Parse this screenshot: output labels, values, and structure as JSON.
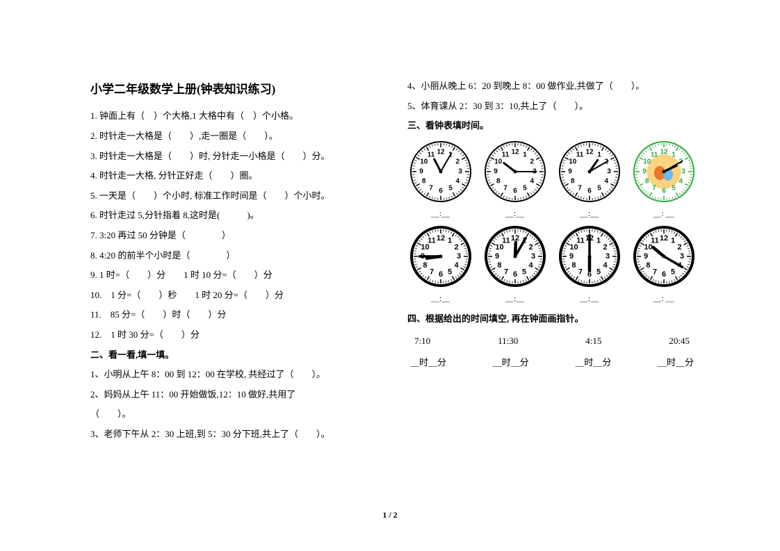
{
  "title": "小学二年级数学上册(钟表知识练习)",
  "section1": {
    "q1": "1. 钟面上有（　）个大格,1 大格中有（　）个小格。",
    "q2": "2. 时针走一大格是（　　）,走一圈是（　　）。",
    "q3": "3. 时针走一大格是（　　）时, 分针走一小格是（　　）分。",
    "q4": "4. 时针走一大格, 分针正好走（　　）圈。",
    "q5": "5. 一天是（　　）个小时,  标准工作时间是（　　）个小时。",
    "q6": "6. 时针走过 5,分针指着 8,这时是(　　　)。",
    "q7": "7. 3:20 再过 50 分钟是（　　　　）",
    "q8": "8. 4:20 的前半个小时是（　　　　）",
    "q9": "9. 1 时=（　　）分　　1 时 10 分=（　　）分",
    "q10": "10.　1 分=（　　）秒　　1 时 20 分=（　　）分",
    "q11": "11.　85 分=（　　）时（　　）分",
    "q12": "12.　1 时 30 分=（　　）分"
  },
  "section2": {
    "title": "二、看一看,填一填。",
    "q1": "1、小明从上午 8：00 到 12：00 在学校, 共经过了（　　）。",
    "q2a": "2、妈妈从上午 11：00 开始做饭,12：10 做好,共用了",
    "q2b": "（　　）。",
    "q3": "3、老师下午从 2：30 上班,到 5：30 分下班,共上了（　　）。",
    "q4": "4、小丽从晚上 6：20 到晚上 8：00 做作业,共做了（　　）。",
    "q5": "5、体育课从 2：30 到 3：10,共上了（　　）。"
  },
  "section3": {
    "title": "三、看钟表填时间。",
    "blank": "＿:＿",
    "blank2": "＿: ＿",
    "clocks": [
      {
        "hour": 11,
        "minute": 5,
        "style": "plain"
      },
      {
        "hour": 10,
        "minute": 15,
        "style": "plain"
      },
      {
        "hour": 1,
        "minute": 10,
        "style": "plain"
      },
      {
        "hour": 2,
        "minute": 10,
        "style": "color"
      },
      {
        "hour": 8,
        "minute": 45,
        "style": "thick"
      },
      {
        "hour": 12,
        "minute": 5,
        "style": "thick"
      },
      {
        "hour": 6,
        "minute": 0,
        "style": "thick"
      },
      {
        "hour": 10,
        "minute": 20,
        "style": "thick"
      }
    ]
  },
  "section4": {
    "title": "四、根据给出的时间填空, 再在钟面画指针。",
    "times": [
      "7:10",
      "11:30",
      "4:15",
      "20:45"
    ],
    "blank": "＿时＿分"
  },
  "footer": "1 / 2",
  "style": {
    "clock_diameter": 90,
    "clock_face_color": "#ffffff",
    "clock_border_color": "#000000",
    "clock_number_color": "#000000",
    "clock_hand_color": "#000000",
    "color_clock_border": "#2fa83a",
    "color_clock_numbers": "#2fa83a",
    "color_clock_center": "#f5c24b"
  }
}
